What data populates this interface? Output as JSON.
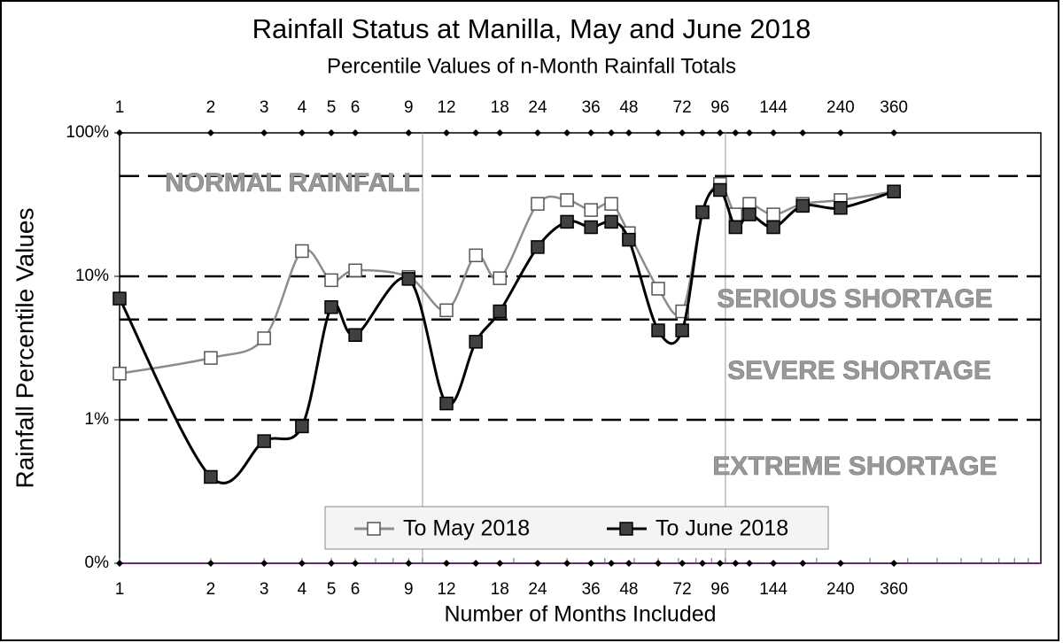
{
  "chart_data": {
    "type": "line",
    "title": "Rainfall Status at Manilla, May and June 2018",
    "subtitle": "Percentile Values of n-Month Rainfall  Totals",
    "x_label": "Number of Months Included",
    "y_label": "Rainfall Percentile Values",
    "x": [
      1,
      2,
      3,
      4,
      5,
      6,
      9,
      12,
      15,
      18,
      24,
      30,
      36,
      42,
      48,
      60,
      72,
      84,
      96,
      108,
      120,
      144,
      180,
      240,
      360
    ],
    "series": [
      {
        "name": "To May 2018",
        "color": "#8c8c8c",
        "marker_fill": "#ffffff",
        "values": [
          2.1,
          2.7,
          3.7,
          15,
          9.4,
          11,
          9.9,
          5.8,
          14,
          9.7,
          32,
          34,
          29,
          32,
          20,
          8.2,
          5.7,
          28,
          44,
          27,
          32,
          27,
          32,
          34,
          39
        ]
      },
      {
        "name": "To June 2018",
        "color": "#000000",
        "marker_fill": "#404040",
        "values": [
          7,
          0.4,
          0.71,
          0.9,
          6.1,
          3.9,
          9.6,
          1.3,
          3.5,
          5.7,
          16,
          24,
          22,
          24,
          18,
          4.2,
          4.2,
          28,
          40,
          22,
          27,
          22,
          31,
          30,
          39
        ]
      }
    ],
    "xlim": [
      1,
      1100
    ],
    "x_log": true,
    "xticks": [
      1,
      2,
      3,
      4,
      5,
      6,
      9,
      12,
      18,
      24,
      36,
      48,
      72,
      96,
      144,
      240,
      360
    ],
    "x_grid": [
      10,
      100
    ],
    "ylim": [
      0.1,
      100
    ],
    "y_log": true,
    "yticks": [
      {
        "value": 0.1,
        "label": "0%"
      },
      {
        "value": 1,
        "label": "1%"
      },
      {
        "value": 10,
        "label": "10%"
      },
      {
        "value": 100,
        "label": "100%"
      }
    ],
    "threshold_lines": [
      1,
      5,
      10,
      50
    ],
    "annotations": [
      "NORMAL RAINFALL",
      "SERIOUS SHORTAGE",
      "SEVERE SHORTAGE",
      "EXTREME SHORTAGE"
    ],
    "legend": "lower center"
  }
}
